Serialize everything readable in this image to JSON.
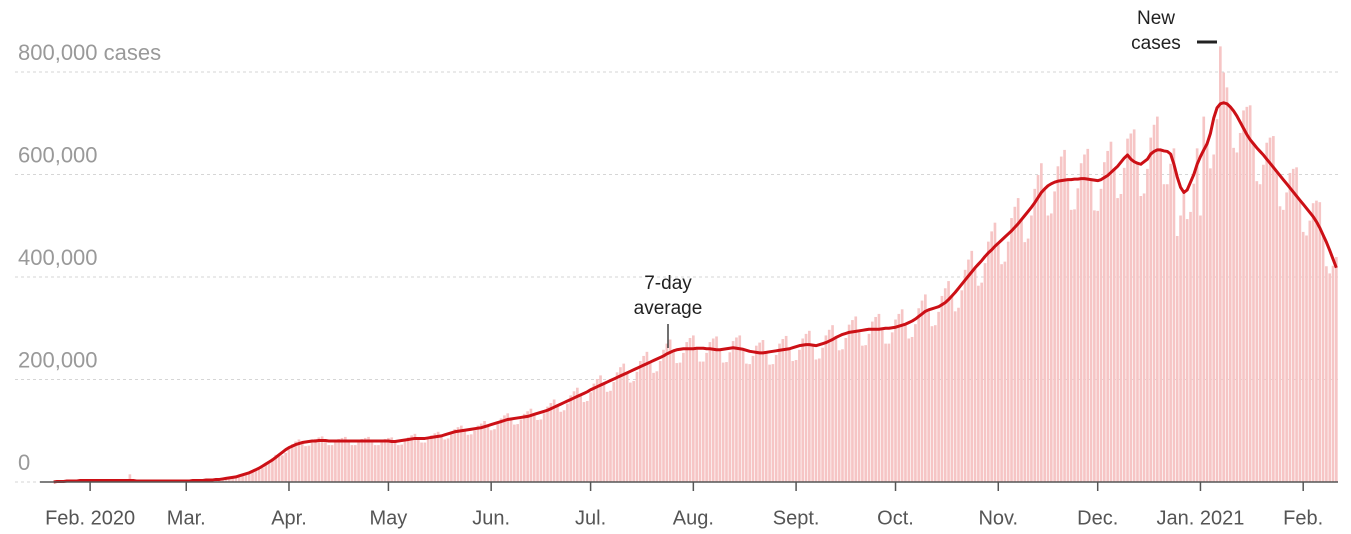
{
  "chart_data": {
    "type": "bar",
    "categories": [
      null,
      null,
      null,
      null,
      null,
      null,
      null,
      null,
      null,
      null,
      null,
      "Feb. 2020",
      null,
      null,
      null,
      null,
      null,
      null,
      null,
      null,
      null,
      null,
      null,
      null,
      null,
      null,
      null,
      null,
      null,
      null,
      null,
      null,
      null,
      null,
      null,
      null,
      null,
      null,
      null,
      null,
      "Mar.",
      null,
      null,
      null,
      null,
      null,
      null,
      null,
      null,
      null,
      null,
      null,
      null,
      null,
      null,
      null,
      null,
      null,
      null,
      null,
      null,
      null,
      null,
      null,
      null,
      null,
      null,
      null,
      null,
      null,
      null,
      "Apr.",
      null,
      null,
      null,
      null,
      null,
      null,
      null,
      null,
      null,
      null,
      null,
      null,
      null,
      null,
      null,
      null,
      null,
      null,
      null,
      null,
      null,
      null,
      null,
      null,
      null,
      null,
      null,
      null,
      null,
      "May",
      null,
      null,
      null,
      null,
      null,
      null,
      null,
      null,
      null,
      null,
      null,
      null,
      null,
      null,
      null,
      null,
      null,
      null,
      null,
      null,
      null,
      null,
      null,
      null,
      null,
      null,
      null,
      null,
      null,
      null,
      "Jun.",
      null,
      null,
      null,
      null,
      null,
      null,
      null,
      null,
      null,
      null,
      null,
      null,
      null,
      null,
      null,
      null,
      null,
      null,
      null,
      null,
      null,
      null,
      null,
      null,
      null,
      null,
      null,
      null,
      null,
      "Jul.",
      null,
      null,
      null,
      null,
      null,
      null,
      null,
      null,
      null,
      null,
      null,
      null,
      null,
      null,
      null,
      null,
      null,
      null,
      null,
      null,
      null,
      null,
      null,
      null,
      null,
      null,
      null,
      null,
      null,
      null,
      "Aug.",
      null,
      null,
      null,
      null,
      null,
      null,
      null,
      null,
      null,
      null,
      null,
      null,
      null,
      null,
      null,
      null,
      null,
      null,
      null,
      null,
      null,
      null,
      null,
      null,
      null,
      null,
      null,
      null,
      null,
      null,
      "Sept.",
      null,
      null,
      null,
      null,
      null,
      null,
      null,
      null,
      null,
      null,
      null,
      null,
      null,
      null,
      null,
      null,
      null,
      null,
      null,
      null,
      null,
      null,
      null,
      null,
      null,
      null,
      null,
      null,
      null,
      "Oct.",
      null,
      null,
      null,
      null,
      null,
      null,
      null,
      null,
      null,
      null,
      null,
      null,
      null,
      null,
      null,
      null,
      null,
      null,
      null,
      null,
      null,
      null,
      null,
      null,
      null,
      null,
      null,
      null,
      null,
      null,
      "Nov.",
      null,
      null,
      null,
      null,
      null,
      null,
      null,
      null,
      null,
      null,
      null,
      null,
      null,
      null,
      null,
      null,
      null,
      null,
      null,
      null,
      null,
      null,
      null,
      null,
      null,
      null,
      null,
      null,
      null,
      "Dec.",
      null,
      null,
      null,
      null,
      null,
      null,
      null,
      null,
      null,
      null,
      null,
      null,
      null,
      null,
      null,
      null,
      null,
      null,
      null,
      null,
      null,
      null,
      null,
      null,
      null,
      null,
      null,
      null,
      null,
      null,
      "Jan. 2021",
      null,
      null,
      null,
      null,
      null,
      null,
      null,
      null,
      null,
      null,
      null,
      null,
      null,
      null,
      null,
      null,
      null,
      null,
      null,
      null,
      null,
      null,
      null,
      null,
      null,
      null,
      null,
      null,
      null,
      null,
      "Feb.",
      null,
      null,
      null,
      null,
      null,
      null,
      null,
      null,
      null,
      null
    ],
    "series": [
      {
        "name": "New cases",
        "type": "bar",
        "color": "#f6c5c5",
        "values": [
          0,
          1000,
          1000,
          1000,
          2000,
          2000,
          2000,
          2000,
          3000,
          3000,
          3000,
          3000,
          3000,
          3000,
          3000,
          3000,
          3000,
          3000,
          3000,
          3000,
          3000,
          3000,
          3000,
          15000,
          3000,
          2000,
          2000,
          2000,
          2000,
          2000,
          2000,
          2000,
          2000,
          2000,
          2000,
          2000,
          2000,
          2000,
          2000,
          2000,
          2000,
          2000,
          3000,
          3000,
          3000,
          3000,
          4000,
          4000,
          4000,
          5000,
          5000,
          6000,
          7000,
          8000,
          9000,
          9000,
          11000,
          14000,
          17000,
          19000,
          23000,
          24000,
          24000,
          28000,
          34000,
          41000,
          46000,
          53000,
          53000,
          52000,
          57000,
          65000,
          74000,
          79000,
          83000,
          77000,
          70000,
          71000,
          78000,
          84000,
          87000,
          89000,
          81000,
          72000,
          72000,
          78000,
          84000,
          86000,
          88000,
          80000,
          72000,
          72000,
          78000,
          84000,
          86000,
          88000,
          80000,
          72000,
          72000,
          78000,
          84000,
          86000,
          87000,
          79000,
          72000,
          73000,
          80000,
          87000,
          91000,
          94000,
          85000,
          77000,
          77000,
          83000,
          91000,
          95000,
          98000,
          90000,
          83000,
          85000,
          93000,
          103000,
          107000,
          110000,
          101000,
          92000,
          93000,
          101000,
          110000,
          114000,
          119000,
          110000,
          101000,
          103000,
          113000,
          124000,
          130000,
          134000,
          123000,
          112000,
          113000,
          122000,
          133000,
          138000,
          143000,
          132000,
          121000,
          122000,
          134000,
          147000,
          154000,
          161000,
          149000,
          137000,
          140000,
          153000,
          169000,
          177000,
          184000,
          170000,
          156000,
          158000,
          175000,
          192000,
          201000,
          208000,
          192000,
          176000,
          178000,
          195000,
          214000,
          224000,
          231000,
          213000,
          194000,
          197000,
          215000,
          236000,
          246000,
          254000,
          234000,
          213000,
          216000,
          236000,
          258000,
          270000,
          278000,
          256000,
          232000,
          233000,
          252000,
          273000,
          281000,
          286000,
          261000,
          235000,
          235000,
          252000,
          273000,
          280000,
          284000,
          258000,
          233000,
          234000,
          253000,
          275000,
          282000,
          286000,
          259000,
          231000,
          230000,
          246000,
          266000,
          272000,
          277000,
          253000,
          229000,
          230000,
          248000,
          270000,
          279000,
          285000,
          260000,
          236000,
          238000,
          258000,
          280000,
          289000,
          295000,
          267000,
          239000,
          241000,
          262000,
          286000,
          297000,
          306000,
          282000,
          257000,
          259000,
          281000,
          307000,
          316000,
          323000,
          295000,
          266000,
          267000,
          289000,
          313000,
          322000,
          328000,
          299000,
          270000,
          270000,
          292000,
          317000,
          328000,
          337000,
          308000,
          280000,
          283000,
          308000,
          339000,
          354000,
          366000,
          336000,
          304000,
          306000,
          332000,
          363000,
          378000,
          392000,
          363000,
          333000,
          340000,
          374000,
          414000,
          434000,
          451000,
          418000,
          383000,
          389000,
          427000,
          469000,
          489000,
          506000,
          466000,
          425000,
          430000,
          469000,
          515000,
          537000,
          554000,
          512000,
          468000,
          475000,
          520000,
          572000,
          599000,
          622000,
          572000,
          520000,
          524000,
          567000,
          616000,
          635000,
          648000,
          590000,
          531000,
          532000,
          573000,
          622000,
          639000,
          650000,
          590000,
          530000,
          529000,
          572000,
          624000,
          646000,
          664000,
          610000,
          554000,
          562000,
          613000,
          670000,
          680000,
          688000,
          622000,
          558000,
          563000,
          611000,
          672000,
          697000,
          713000,
          648000,
          581000,
          581000,
          621000,
          651000,
          480000,
          520000,
          565000,
          513000,
          527000,
          582000,
          651000,
          520000,
          713000,
          660000,
          612000,
          639000,
          708000,
          850000,
          799000,
          770000,
          732000,
          652000,
          643000,
          681000,
          725000,
          732000,
          735000,
          660000,
          587000,
          581000,
          619000,
          662000,
          672000,
          675000,
          606000,
          538000,
          531000,
          565000,
          603000,
          611000,
          614000,
          550000,
          488000,
          481000,
          510000,
          544000,
          549000,
          546000,
          482000,
          421000,
          407000,
          422000,
          439000
        ]
      },
      {
        "name": "7-day average",
        "type": "line",
        "color": "#cc1016",
        "values": [
          0,
          1000,
          1000,
          1000,
          2000,
          2000,
          2000,
          2000,
          3000,
          3000,
          3000,
          3000,
          3000,
          3000,
          3000,
          3000,
          3000,
          3000,
          3000,
          3000,
          3000,
          3000,
          3000,
          3000,
          3000,
          2000,
          2000,
          2000,
          2000,
          2000,
          2000,
          2000,
          2000,
          2000,
          2000,
          2000,
          2000,
          2000,
          2000,
          2000,
          2000,
          2000,
          3000,
          3000,
          3000,
          3000,
          4000,
          4000,
          4000,
          5000,
          5000,
          6000,
          7000,
          8000,
          9000,
          10000,
          12000,
          14000,
          16000,
          18000,
          21000,
          24000,
          27000,
          31000,
          35000,
          39000,
          43000,
          48000,
          53000,
          58000,
          63000,
          67000,
          70000,
          73000,
          75000,
          77000,
          78000,
          79000,
          80000,
          80000,
          81000,
          81000,
          81000,
          80000,
          80000,
          80000,
          80000,
          80000,
          80000,
          80000,
          80000,
          80000,
          80000,
          80000,
          80000,
          80000,
          80000,
          80000,
          80000,
          80000,
          80000,
          80000,
          79000,
          79000,
          80000,
          81000,
          82000,
          83000,
          84000,
          85000,
          85000,
          85000,
          85000,
          86000,
          87000,
          88000,
          89000,
          90000,
          92000,
          94000,
          96000,
          98000,
          99000,
          100000,
          101000,
          102000,
          103000,
          104000,
          105000,
          106000,
          108000,
          110000,
          112000,
          114000,
          116000,
          118000,
          120000,
          122000,
          123000,
          124000,
          125000,
          126000,
          127000,
          128000,
          130000,
          132000,
          134000,
          136000,
          138000,
          140000,
          143000,
          146000,
          149000,
          152000,
          155000,
          158000,
          161000,
          164000,
          167000,
          170000,
          173000,
          176000,
          180000,
          183000,
          186000,
          189000,
          192000,
          195000,
          198000,
          201000,
          204000,
          207000,
          210000,
          213000,
          216000,
          219000,
          222000,
          225000,
          228000,
          231000,
          234000,
          237000,
          240000,
          243000,
          246000,
          250000,
          253000,
          256000,
          258000,
          259000,
          260000,
          260000,
          260000,
          260000,
          261000,
          261000,
          261000,
          260000,
          260000,
          259000,
          258000,
          258000,
          259000,
          260000,
          261000,
          262000,
          261000,
          260000,
          259000,
          257000,
          255000,
          254000,
          253000,
          252000,
          252000,
          253000,
          254000,
          255000,
          256000,
          257000,
          258000,
          259000,
          260000,
          262000,
          264000,
          266000,
          267000,
          268000,
          268000,
          267000,
          266000,
          268000,
          270000,
          272000,
          275000,
          278000,
          282000,
          285000,
          288000,
          290000,
          292000,
          293000,
          294000,
          295000,
          296000,
          297000,
          298000,
          298000,
          298000,
          298000,
          299000,
          300000,
          300000,
          301000,
          302000,
          304000,
          306000,
          308000,
          311000,
          314000,
          318000,
          323000,
          328000,
          333000,
          336000,
          338000,
          340000,
          342000,
          346000,
          350000,
          356000,
          363000,
          370000,
          378000,
          386000,
          394000,
          402000,
          410000,
          418000,
          425000,
          432000,
          440000,
          447000,
          453000,
          460000,
          466000,
          472000,
          478000,
          484000,
          490000,
          497000,
          504000,
          512000,
          520000,
          528000,
          536000,
          545000,
          555000,
          565000,
          572000,
          578000,
          582000,
          585000,
          587000,
          588000,
          589000,
          590000,
          590000,
          591000,
          591000,
          592000,
          592000,
          591000,
          590000,
          589000,
          588000,
          590000,
          594000,
          598000,
          604000,
          610000,
          616000,
          624000,
          632000,
          638000,
          630000,
          625000,
          622000,
          620000,
          625000,
          630000,
          640000,
          645000,
          648000,
          648000,
          646000,
          645000,
          640000,
          620000,
          595000,
          575000,
          565000,
          570000,
          585000,
          600000,
          620000,
          635000,
          648000,
          660000,
          680000,
          710000,
          730000,
          738000,
          740000,
          738000,
          732000,
          724000,
          714000,
          702000,
          690000,
          678000,
          668000,
          660000,
          652000,
          645000,
          638000,
          630000,
          622000,
          614000,
          606000,
          598000,
          590000,
          582000,
          574000,
          566000,
          558000,
          550000,
          542000,
          534000,
          526000,
          518000,
          508000,
          496000,
          482000,
          468000,
          452000,
          435000,
          418000
        ]
      }
    ],
    "ylim": [
      0,
      860000
    ],
    "yticks": [
      0,
      {
        "value": 200000,
        "label": "200,000"
      },
      {
        "value": 400000,
        "label": "400,000"
      },
      {
        "value": 600000,
        "label": "600,000"
      },
      {
        "value": 800000,
        "label": "800,000 cases"
      }
    ],
    "grid": true
  }
}
